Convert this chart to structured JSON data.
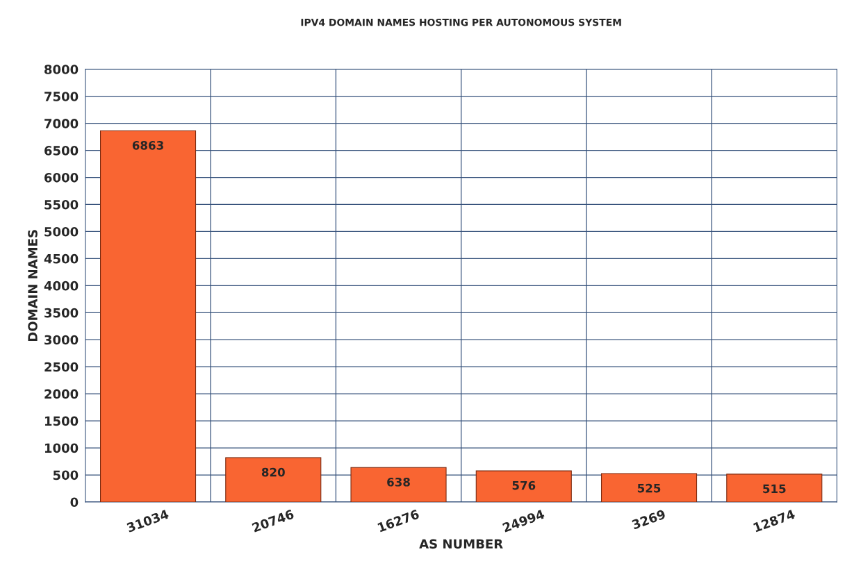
{
  "chart_data": {
    "type": "bar",
    "title": "IPV4 DOMAIN NAMES HOSTING PER AUTONOMOUS SYSTEM",
    "xlabel": "AS NUMBER",
    "ylabel": "DOMAIN NAMES",
    "categories": [
      "31034",
      "20746",
      "16276",
      "24994",
      "3269",
      "12874"
    ],
    "values": [
      6863,
      820,
      638,
      576,
      525,
      515
    ],
    "color": "#f96532",
    "ylim": [
      0,
      8000
    ],
    "yticks": [
      0,
      500,
      1000,
      1500,
      2000,
      2500,
      3000,
      3500,
      4000,
      4500,
      5000,
      5500,
      6000,
      6500,
      7000,
      7500,
      8000
    ],
    "grid": true,
    "data_labels": true
  }
}
